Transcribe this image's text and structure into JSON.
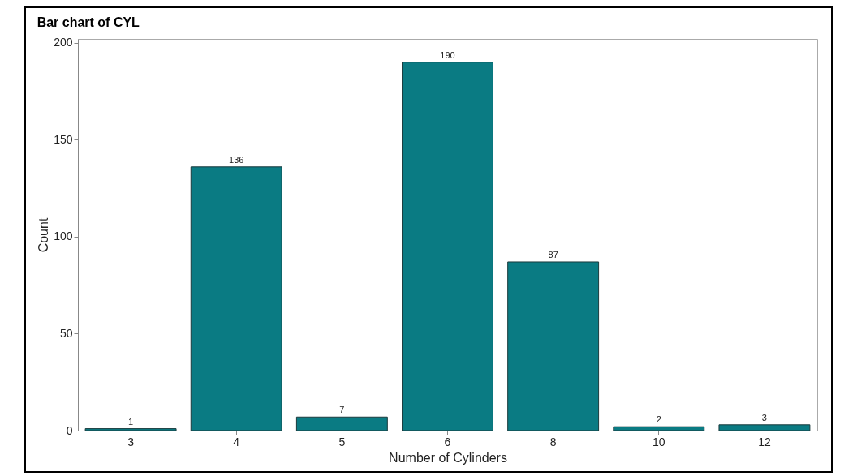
{
  "chart_data": {
    "type": "bar",
    "title": "Bar chart of CYL",
    "xlabel": "Number of Cylinders",
    "ylabel": "Count",
    "categories": [
      "3",
      "4",
      "5",
      "6",
      "8",
      "10",
      "12"
    ],
    "values": [
      1,
      136,
      7,
      190,
      87,
      2,
      3
    ],
    "color": "#0a7b83",
    "ylim": [
      0,
      202
    ],
    "yticks": [
      0,
      50,
      100,
      150,
      200
    ],
    "grid": false,
    "data_labels": true
  }
}
